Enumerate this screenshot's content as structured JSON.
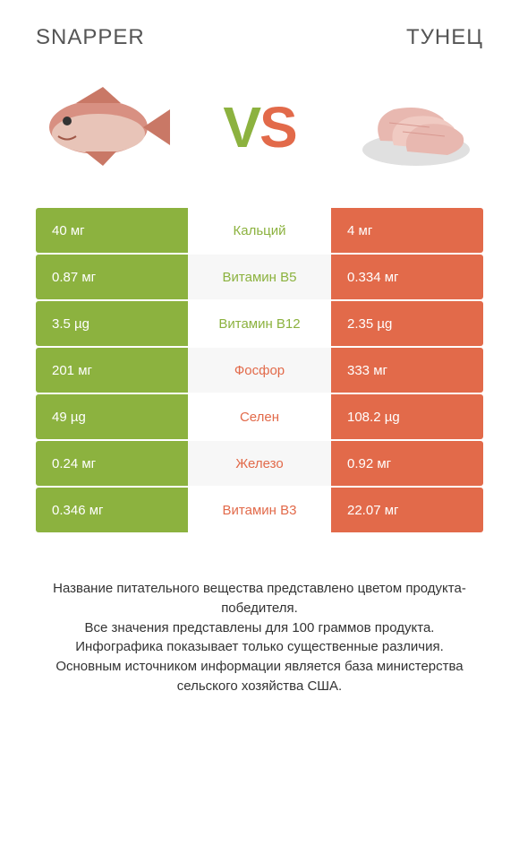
{
  "header": {
    "left_title": "SNAPPER",
    "right_title": "ТУНЕЦ"
  },
  "vs": {
    "v": "V",
    "s": "S"
  },
  "colors": {
    "left": "#8cb23f",
    "right": "#e26a4a",
    "row_alt_bg": "#f7f7f7",
    "row_bg": "#ffffff",
    "text_dark": "#333333"
  },
  "table": {
    "rows": [
      {
        "left": "40 мг",
        "label": "Кальций",
        "right": "4 мг",
        "winner": "left"
      },
      {
        "left": "0.87 мг",
        "label": "Витамин B5",
        "right": "0.334 мг",
        "winner": "left"
      },
      {
        "left": "3.5 µg",
        "label": "Витамин B12",
        "right": "2.35 µg",
        "winner": "left"
      },
      {
        "left": "201 мг",
        "label": "Фосфор",
        "right": "333 мг",
        "winner": "right"
      },
      {
        "left": "49 µg",
        "label": "Селен",
        "right": "108.2 µg",
        "winner": "right"
      },
      {
        "left": "0.24 мг",
        "label": "Железо",
        "right": "0.92 мг",
        "winner": "right"
      },
      {
        "left": "0.346 мг",
        "label": "Витамин B3",
        "right": "22.07 мг",
        "winner": "right"
      }
    ]
  },
  "footer": {
    "line1": "Название питательного вещества представлено цветом продукта-победителя.",
    "line2": "Все значения представлены для 100 граммов продукта.",
    "line3": "Инфографика показывает только существенные различия.",
    "line4": "Основным источником информации является база министерства сельского хозяйства США."
  },
  "images": {
    "snapper_alt": "snapper-fish",
    "tuna_alt": "tuna-slices"
  }
}
